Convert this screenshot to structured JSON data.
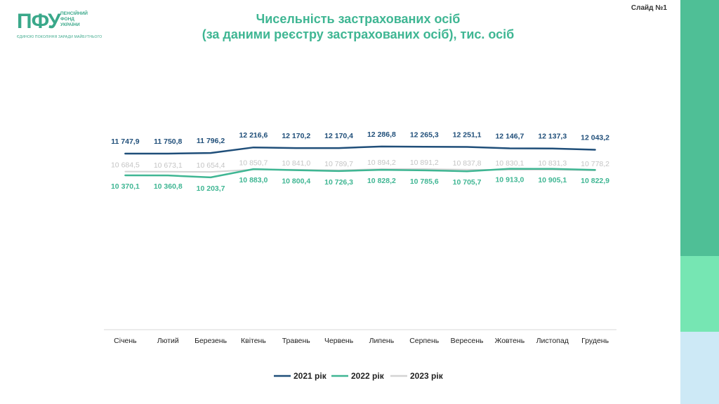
{
  "logo": {
    "mark": "ПФУ",
    "line1": "ПЕНСІЙНИЙ",
    "line2": "ФОНД",
    "line3": "УКРАЇНИ",
    "tagline": "ЄДИНОЮ ПОКОЛІННЯ ЗАРАДИ МАЙБУТНЬОГО"
  },
  "slide_label": "Слайд №1",
  "title_line1": "Чисельність застрахованих осіб",
  "title_line2": "(за даними реєстру застрахованих осіб), тис. осіб",
  "colors": {
    "s2021": "#1f4e79",
    "s2022": "#3fb693",
    "s2023": "#d3d3d3",
    "title": "#3fb693",
    "axis": "#d9d9d9"
  },
  "chart_data": {
    "type": "line",
    "categories": [
      "Січень",
      "Лютий",
      "Березень",
      "Квітень",
      "Травень",
      "Червень",
      "Липень",
      "Серпень",
      "Вересень",
      "Жовтень",
      "Листопад",
      "Грудень"
    ],
    "series": [
      {
        "name": "2021 рік",
        "values": [
          11747.9,
          11750.8,
          11796.2,
          12216.6,
          12170.2,
          12170.4,
          12286.8,
          12265.3,
          12251.1,
          12146.7,
          12137.3,
          12043.2
        ],
        "labels": [
          "11 747,9",
          "11 750,8",
          "11 796,2",
          "12 216,6",
          "12 170,2",
          "12 170,4",
          "12 286,8",
          "12 265,3",
          "12 251,1",
          "12 146,7",
          "12 137,3",
          "12 043,2"
        ]
      },
      {
        "name": "2022 рік",
        "values": [
          10370.1,
          10360.8,
          10203.7,
          10883.0,
          10800.4,
          10726.3,
          10828.2,
          10785.6,
          10705.7,
          10913.0,
          10905.1,
          10822.9
        ],
        "labels": [
          "10 370,1",
          "10 360,8",
          "10 203,7",
          "10 883,0",
          "10 800,4",
          "10 726,3",
          "10 828,2",
          "10 785,6",
          "10 705,7",
          "10 913,0",
          "10 905,1",
          "10 822,9"
        ]
      },
      {
        "name": "2023 рік",
        "values": [
          10684.5,
          10673.1,
          10654.4,
          10850.7,
          10841.0,
          10789.7,
          10894.2,
          10891.2,
          10837.8,
          10830.1,
          10831.3,
          10778.2
        ],
        "labels": [
          "10 684,5",
          "10 673,1",
          "10 654,4",
          "10 850,7",
          "10 841,0",
          "10 789,7",
          "10 894,2",
          "10 891,2",
          "10 837,8",
          "10 830,1",
          "10 831,3",
          "10 778,2"
        ]
      }
    ],
    "title": "Чисельність застрахованих осіб (за даними реєстру застрахованих осіб), тис. осіб",
    "xlabel": "",
    "ylabel": "",
    "legend_position": "bottom"
  }
}
